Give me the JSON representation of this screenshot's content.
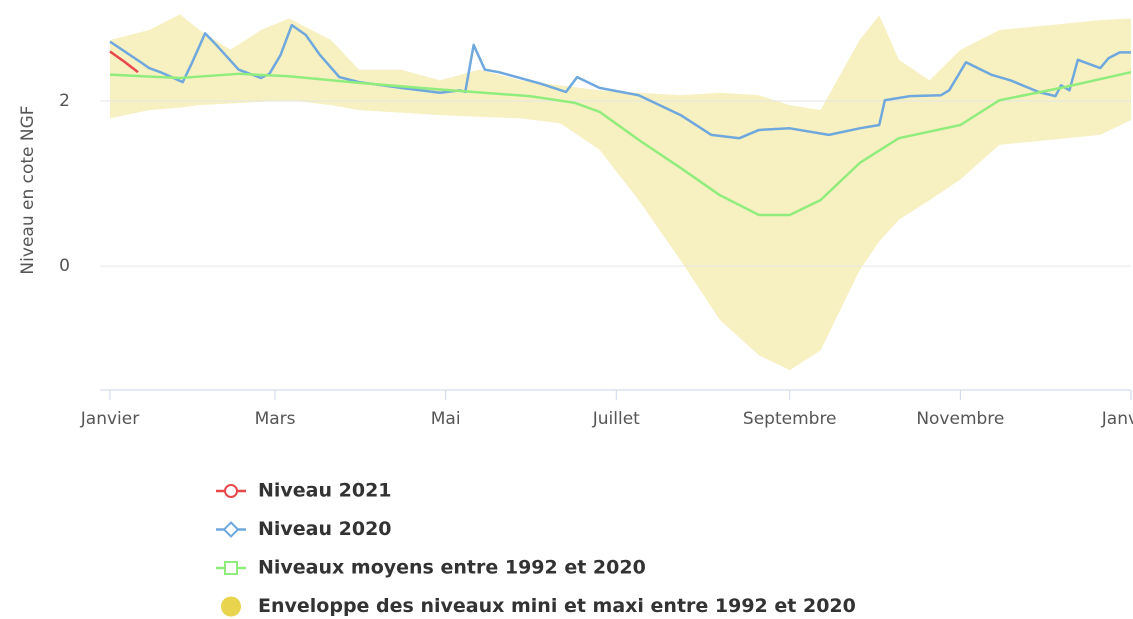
{
  "chart_data": {
    "type": "line",
    "ylabel": "Niveau en cote NGF",
    "xlim": [
      0,
      365
    ],
    "ylim": [
      -1.5,
      3
    ],
    "yticks": [
      0,
      2
    ],
    "grid": true,
    "xticks": [
      {
        "value": 0,
        "label": "Janvier"
      },
      {
        "value": 59,
        "label": "Mars"
      },
      {
        "value": 120,
        "label": "Mai"
      },
      {
        "value": 181,
        "label": "Juillet"
      },
      {
        "value": 243,
        "label": "Septembre"
      },
      {
        "value": 304,
        "label": "Novembre"
      },
      {
        "value": 365,
        "label": "Janvier"
      }
    ],
    "envelope": {
      "name": "Enveloppe des niveaux mini et maxi entre 1992 et 2020",
      "color": "#e8d44d",
      "x": [
        0,
        14,
        25,
        32,
        43,
        54,
        64,
        79,
        89,
        104,
        118,
        132,
        147,
        161,
        175,
        189,
        204,
        218,
        232,
        243,
        254,
        268,
        275,
        282,
        293,
        304,
        318,
        336,
        354,
        365
      ],
      "high": [
        2.74,
        2.86,
        3.05,
        2.86,
        2.62,
        2.86,
        3.0,
        2.74,
        2.38,
        2.38,
        2.25,
        2.38,
        2.25,
        2.19,
        2.13,
        2.1,
        2.07,
        2.1,
        2.07,
        1.95,
        1.89,
        2.74,
        3.04,
        2.5,
        2.25,
        2.62,
        2.86,
        2.92,
        2.98,
        3.0
      ],
      "low": [
        1.79,
        1.89,
        1.92,
        1.95,
        1.97,
        1.99,
        2.01,
        1.95,
        1.89,
        1.86,
        1.83,
        1.81,
        1.79,
        1.73,
        1.41,
        0.8,
        0.07,
        -0.65,
        -1.08,
        -1.26,
        -1.02,
        -0.05,
        0.3,
        0.56,
        0.8,
        1.05,
        1.47,
        1.53,
        1.59,
        1.77
      ]
    },
    "series": [
      {
        "name": "Niveau 2021",
        "color": "#e8474b",
        "marker": "circle",
        "x": [
          0,
          5,
          10
        ],
        "values": [
          2.6,
          2.48,
          2.35
        ]
      },
      {
        "name": "Niveau 2020",
        "color": "#6fa8dc",
        "marker": "diamond",
        "x": [
          0,
          11,
          14,
          18,
          26,
          29,
          34,
          38,
          46,
          54,
          57,
          61,
          65,
          70,
          75,
          82,
          89,
          104,
          118,
          125,
          127,
          130,
          134,
          139,
          154,
          163,
          167,
          175,
          189,
          204,
          215,
          225,
          232,
          243,
          257,
          268,
          275,
          277,
          286,
          297,
          300,
          306,
          315,
          322,
          332,
          338,
          340,
          343,
          346,
          354,
          357,
          361,
          365
        ],
        "values": [
          2.72,
          2.47,
          2.4,
          2.35,
          2.23,
          2.44,
          2.82,
          2.68,
          2.38,
          2.28,
          2.33,
          2.56,
          2.92,
          2.8,
          2.56,
          2.29,
          2.23,
          2.16,
          2.1,
          2.13,
          2.11,
          2.68,
          2.38,
          2.35,
          2.21,
          2.11,
          2.29,
          2.16,
          2.07,
          1.83,
          1.59,
          1.55,
          1.65,
          1.67,
          1.59,
          1.67,
          1.71,
          2.01,
          2.06,
          2.07,
          2.13,
          2.47,
          2.32,
          2.25,
          2.11,
          2.06,
          2.19,
          2.13,
          2.5,
          2.4,
          2.52,
          2.59,
          2.59
        ]
      },
      {
        "name": "Niveaux moyens entre 1992 et 2020",
        "color": "#90ed7d",
        "marker": "square",
        "x": [
          0,
          25,
          46,
          64,
          89,
          118,
          150,
          166,
          175,
          189,
          204,
          218,
          232,
          243,
          254,
          268,
          282,
          304,
          318,
          340,
          365
        ],
        "values": [
          2.32,
          2.28,
          2.33,
          2.3,
          2.22,
          2.14,
          2.06,
          1.98,
          1.87,
          1.53,
          1.19,
          0.86,
          0.62,
          0.62,
          0.8,
          1.25,
          1.55,
          1.71,
          2.01,
          2.16,
          2.35
        ]
      }
    ]
  }
}
